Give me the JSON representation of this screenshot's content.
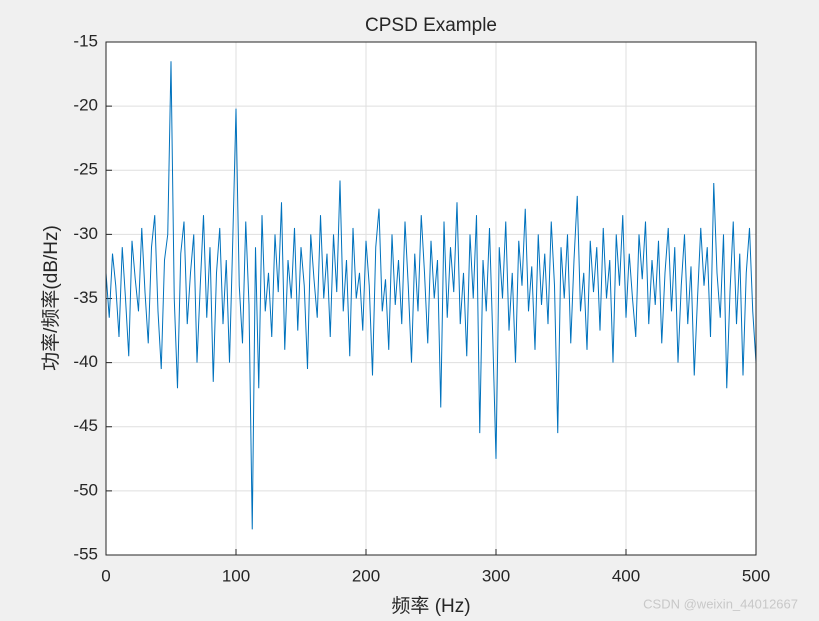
{
  "chart_data": {
    "type": "line",
    "title": "CPSD Example",
    "xlabel": "频率 (Hz)",
    "ylabel": "功率/频率(dB/Hz)",
    "color": "#0072bd",
    "grid": true,
    "xlim": [
      0,
      500
    ],
    "xticks": [
      0,
      100,
      200,
      300,
      400,
      500
    ],
    "ylim": [
      -55,
      -15
    ],
    "yticks": [
      -55,
      -50,
      -45,
      -40,
      -35,
      -30,
      -25,
      -20,
      -15
    ],
    "x": [
      0,
      2.5,
      5,
      7.5,
      10,
      12.5,
      15,
      17.5,
      20,
      22.5,
      25,
      27.5,
      30,
      32.5,
      35,
      37.5,
      40,
      42.5,
      45,
      47.5,
      50,
      52.5,
      55,
      57.5,
      60,
      62.5,
      65,
      67.5,
      70,
      72.5,
      75,
      77.5,
      80,
      82.5,
      85,
      87.5,
      90,
      92.5,
      95,
      97.5,
      100,
      102.5,
      105,
      107.5,
      110,
      112.5,
      115,
      117.5,
      120,
      122.5,
      125,
      127.5,
      130,
      132.5,
      135,
      137.5,
      140,
      142.5,
      145,
      147.5,
      150,
      152.5,
      155,
      157.5,
      160,
      162.5,
      165,
      167.5,
      170,
      172.5,
      175,
      177.5,
      180,
      182.5,
      185,
      187.5,
      190,
      192.5,
      195,
      197.5,
      200,
      202.5,
      205,
      207.5,
      210,
      212.5,
      215,
      217.5,
      220,
      222.5,
      225,
      227.5,
      230,
      232.5,
      235,
      237.5,
      240,
      242.5,
      245,
      247.5,
      250,
      252.5,
      255,
      257.5,
      260,
      262.5,
      265,
      267.5,
      270,
      272.5,
      275,
      277.5,
      280,
      282.5,
      285,
      287.5,
      290,
      292.5,
      295,
      297.5,
      300,
      302.5,
      305,
      307.5,
      310,
      312.5,
      315,
      317.5,
      320,
      322.5,
      325,
      327.5,
      330,
      332.5,
      335,
      337.5,
      340,
      342.5,
      345,
      347.5,
      350,
      352.5,
      355,
      357.5,
      360,
      362.5,
      365,
      367.5,
      370,
      372.5,
      375,
      377.5,
      380,
      382.5,
      385,
      387.5,
      390,
      392.5,
      395,
      397.5,
      400,
      402.5,
      405,
      407.5,
      410,
      412.5,
      415,
      417.5,
      420,
      422.5,
      425,
      427.5,
      430,
      432.5,
      435,
      437.5,
      440,
      442.5,
      445,
      447.5,
      450,
      452.5,
      455,
      457.5,
      460,
      462.5,
      465,
      467.5,
      470,
      472.5,
      475,
      477.5,
      480,
      482.5,
      485,
      487.5,
      490,
      492.5,
      495,
      497.5,
      500
    ],
    "values": [
      -33,
      -36.5,
      -31.5,
      -34,
      -38,
      -31,
      -35,
      -39.5,
      -30.5,
      -33.5,
      -36,
      -29.5,
      -34.5,
      -38.5,
      -31,
      -28.5,
      -36,
      -40.5,
      -32,
      -30,
      -16.5,
      -35,
      -42,
      -31.5,
      -29,
      -37,
      -33,
      -30,
      -40,
      -34,
      -28.5,
      -36.5,
      -31,
      -41.5,
      -33,
      -29.5,
      -37,
      -32,
      -40,
      -30.5,
      -20.2,
      -34,
      -38.5,
      -29,
      -35.5,
      -53,
      -31,
      -42,
      -28.5,
      -36,
      -33,
      -38,
      -30,
      -34.5,
      -27.5,
      -39,
      -32,
      -35,
      -29.5,
      -37.5,
      -31,
      -34,
      -40.5,
      -30,
      -33.5,
      -36.5,
      -28.5,
      -35,
      -31.5,
      -38,
      -30,
      -34.5,
      -25.8,
      -36,
      -32,
      -39.5,
      -29.5,
      -35,
      -33,
      -37.5,
      -30.5,
      -34,
      -41,
      -31,
      -28,
      -36,
      -33.5,
      -39,
      -30,
      -35.5,
      -32,
      -37,
      -29,
      -34,
      -40,
      -31.5,
      -36,
      -28.5,
      -33,
      -38.5,
      -30.5,
      -35,
      -32,
      -43.5,
      -29,
      -36.5,
      -31,
      -34.5,
      -27.5,
      -37,
      -33,
      -39.5,
      -30,
      -35,
      -28.5,
      -45.5,
      -32,
      -36,
      -29.5,
      -38,
      -47.5,
      -31,
      -35,
      -29,
      -37.5,
      -33,
      -40,
      -30.5,
      -34,
      -28,
      -36,
      -32.5,
      -39,
      -30,
      -35.5,
      -31.5,
      -37,
      -29,
      -34,
      -45.5,
      -31,
      -35,
      -30,
      -38.5,
      -32,
      -27,
      -36,
      -33,
      -39,
      -30.5,
      -34.5,
      -31,
      -37.5,
      -29.5,
      -35,
      -32,
      -40,
      -30,
      -34,
      -28.5,
      -36.5,
      -31.5,
      -35,
      -38,
      -30,
      -33.5,
      -29,
      -37,
      -32,
      -35.5,
      -30.5,
      -38.5,
      -33,
      -29.5,
      -36,
      -31,
      -40,
      -34,
      -30,
      -37,
      -32.5,
      -41,
      -35,
      -29.5,
      -34,
      -31,
      -38,
      -26,
      -33,
      -36.5,
      -30,
      -42,
      -34.5,
      -29,
      -37,
      -31.5,
      -41,
      -33,
      -29.5,
      -36,
      -40
    ]
  },
  "watermark": "CSDN @weixin_44012667"
}
